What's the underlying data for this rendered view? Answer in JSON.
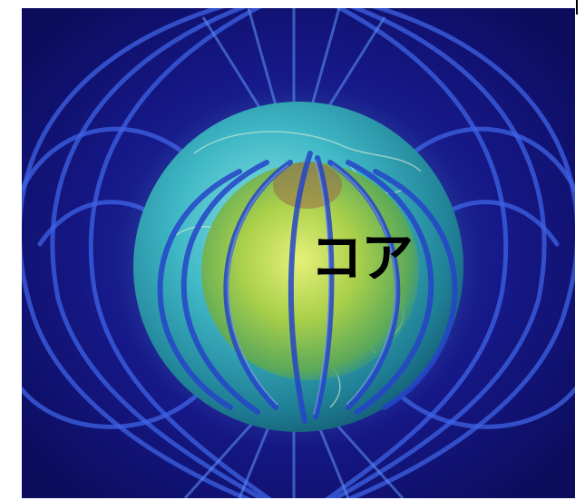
{
  "image": {
    "subject": "earth-magnetic-field-icon",
    "background_color": "#10106e",
    "globe_color": "#38b8c0",
    "inner_core_color": "#b8d84a",
    "field_line_color": "#2f5fe0"
  },
  "label": {
    "text": "コア"
  }
}
